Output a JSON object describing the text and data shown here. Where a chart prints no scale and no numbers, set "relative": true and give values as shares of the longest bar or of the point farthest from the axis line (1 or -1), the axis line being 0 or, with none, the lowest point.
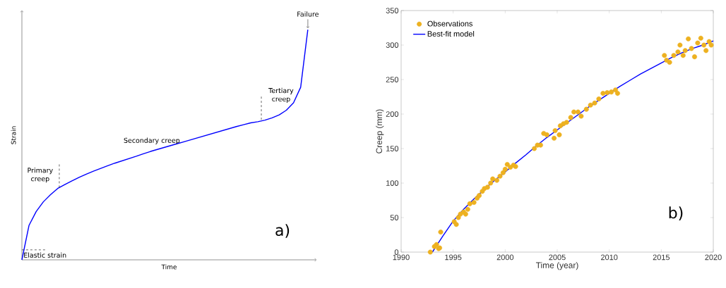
{
  "chart_data": [
    {
      "type": "line",
      "relative": true,
      "xlabel": "Time",
      "ylabel": "Strain",
      "color": "#0000ff",
      "categories": [
        null,
        null,
        null,
        null,
        null,
        null,
        null,
        null,
        null,
        null,
        null,
        null,
        null,
        null,
        null,
        null,
        null,
        null,
        null,
        null,
        null,
        null,
        null,
        null,
        null,
        null,
        null,
        null,
        null,
        null,
        null,
        null,
        null,
        null,
        null,
        null,
        null,
        null,
        null,
        null,
        null
      ],
      "values": [
        0,
        0.15,
        0.21,
        0.252,
        0.283,
        0.31,
        0.327,
        0.343,
        0.358,
        0.372,
        0.385,
        0.397,
        0.409,
        0.42,
        0.43,
        0.44,
        0.45,
        0.461,
        0.471,
        0.48,
        0.489,
        0.498,
        0.507,
        0.516,
        0.525,
        0.534,
        0.543,
        0.552,
        0.561,
        0.57,
        0.579,
        0.587,
        0.595,
        0.6,
        0.607,
        0.617,
        0.63,
        0.65,
        0.682,
        0.75,
        1
      ],
      "annotations": [
        "Elastic strain",
        "Primary creep",
        "Secondary creep",
        "Tertiary creep",
        "Failure",
        "a)"
      ]
    },
    {
      "type": "scatter",
      "xlabel": "Time (year)",
      "ylabel": "Creep (mm)",
      "xlim": [
        1990,
        2020
      ],
      "ylim": [
        0,
        350
      ],
      "xticks": [
        1990,
        1995,
        2000,
        2005,
        2010,
        2015,
        2020
      ],
      "yticks": [
        0,
        50,
        100,
        150,
        200,
        250,
        300,
        350
      ],
      "legend": "top left",
      "series": [
        {
          "name": "Observations",
          "type": "scatter",
          "marker": "circle",
          "color": "#edb120",
          "x": [
            1992.8,
            1993.2,
            1993.4,
            1993.6,
            1993.7,
            1993.8,
            1995.1,
            1995.3,
            1995.5,
            1995.7,
            1996,
            1996.2,
            1996.4,
            1996.6,
            1997,
            1997.3,
            1997.5,
            1997.8,
            1998,
            1998.3,
            1998.6,
            1998.8,
            1999.2,
            1999.5,
            1999.8,
            2000,
            2000.2,
            2000.5,
            2000.8,
            2001,
            2002.8,
            2003.1,
            2003.4,
            2003.7,
            2004,
            2004.7,
            2004.8,
            2005.2,
            2005.3,
            2005.6,
            2005.9,
            2006.3,
            2006.6,
            2007,
            2007.3,
            2007.8,
            2008.2,
            2008.6,
            2009,
            2009.4,
            2009.8,
            2010.2,
            2010.6,
            2010.8,
            2015.3,
            2015.5,
            2015.8,
            2016.2,
            2016.6,
            2016.8,
            2017.1,
            2017.3,
            2017.6,
            2017.9,
            2018.2,
            2018.5,
            2018.8,
            2019.1,
            2019.3,
            2019.6,
            2019.8
          ],
          "values": [
            0,
            8,
            11,
            5,
            6,
            29,
            44,
            40,
            50,
            55,
            58,
            55,
            62,
            70,
            72,
            78,
            82,
            88,
            92,
            94,
            100,
            106,
            104,
            110,
            115,
            120,
            127,
            123,
            126,
            124,
            150,
            155,
            155,
            172,
            170,
            165,
            176,
            170,
            183,
            186,
            188,
            195,
            203,
            203,
            197,
            207,
            213,
            216,
            222,
            230,
            231,
            232,
            235,
            230,
            285,
            278,
            275,
            285,
            290,
            300,
            285,
            292,
            309,
            295,
            283,
            303,
            310,
            300,
            292,
            305,
            300
          ]
        },
        {
          "name": "Best-fit model",
          "type": "line",
          "color": "#0000ff",
          "x": [
            1993,
            1994,
            1995,
            1996,
            1997,
            1998,
            1999,
            2000,
            2001,
            2002,
            2003,
            2004,
            2005,
            2006,
            2007,
            2008,
            2009,
            2010,
            2011,
            2012,
            2013,
            2014,
            2015,
            2016,
            2017,
            2018,
            2019,
            2020
          ],
          "values": [
            0,
            23,
            45,
            62,
            77,
            91,
            104,
            116,
            129,
            141,
            154,
            166,
            177,
            188,
            199,
            210,
            220,
            230,
            240,
            249,
            258,
            266,
            274,
            282,
            289,
            295,
            300,
            306
          ]
        }
      ],
      "annotations": [
        "b)"
      ]
    }
  ]
}
